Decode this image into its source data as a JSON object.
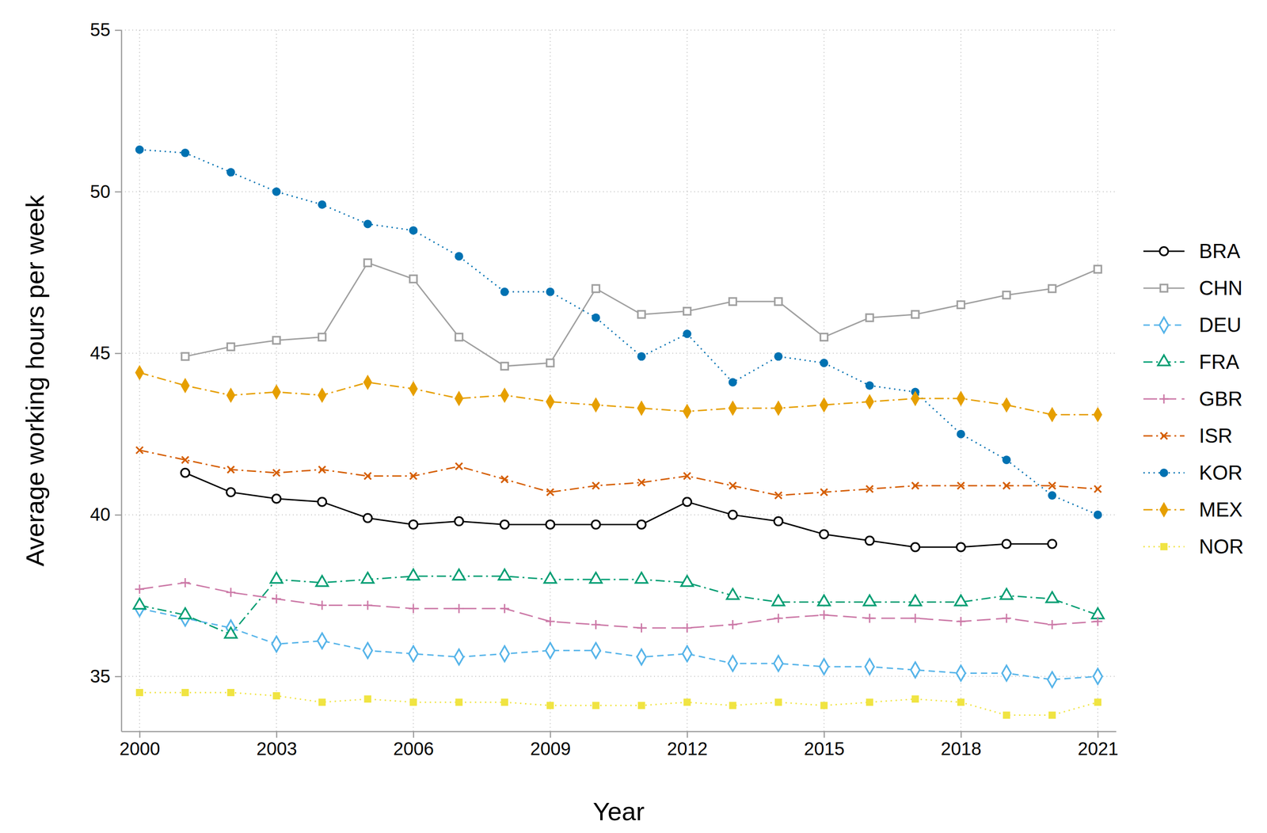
{
  "chart_data": {
    "type": "line",
    "x_label": "Year",
    "y_label": "Average working hours per week",
    "x": [
      2000,
      2001,
      2002,
      2003,
      2004,
      2005,
      2006,
      2007,
      2008,
      2009,
      2010,
      2011,
      2012,
      2013,
      2014,
      2015,
      2016,
      2017,
      2018,
      2019,
      2020,
      2021
    ],
    "xlim": [
      1999.6,
      2021.4
    ],
    "xticks": [
      2000,
      2003,
      2006,
      2009,
      2012,
      2015,
      2018,
      2021
    ],
    "ylim": [
      33.3,
      55
    ],
    "yticks": [
      35,
      40,
      45,
      50,
      55
    ],
    "grid": true,
    "legend": "right",
    "series": [
      {
        "name": "BRA",
        "color": "#000000",
        "marker": "circle-open",
        "line_style": "solid",
        "values": [
          null,
          41.3,
          40.7,
          40.5,
          40.4,
          39.9,
          39.7,
          39.8,
          39.7,
          39.7,
          39.7,
          39.7,
          40.4,
          40.0,
          39.8,
          39.4,
          39.2,
          39.0,
          39.0,
          39.1,
          39.1,
          null
        ]
      },
      {
        "name": "CHN",
        "color": "#a0a0a0",
        "marker": "square-open",
        "line_style": "solid",
        "values": [
          null,
          44.9,
          45.2,
          45.4,
          45.5,
          47.8,
          47.3,
          45.5,
          44.6,
          44.7,
          47.0,
          46.2,
          46.3,
          46.6,
          46.6,
          45.5,
          46.1,
          46.2,
          46.5,
          46.8,
          47.0,
          47.6
        ]
      },
      {
        "name": "DEU",
        "color": "#56b4e9",
        "marker": "diamond-open",
        "line_style": "dash",
        "values": [
          37.1,
          36.8,
          36.5,
          36.0,
          36.1,
          35.8,
          35.7,
          35.6,
          35.7,
          35.8,
          35.8,
          35.6,
          35.7,
          35.4,
          35.4,
          35.3,
          35.3,
          35.2,
          35.1,
          35.1,
          34.9,
          35.0
        ]
      },
      {
        "name": "FRA",
        "color": "#009e73",
        "marker": "triangle-open",
        "line_style": "dashdot",
        "values": [
          37.2,
          36.9,
          36.3,
          38.0,
          37.9,
          38.0,
          38.1,
          38.1,
          38.1,
          38.0,
          38.0,
          38.0,
          37.9,
          37.5,
          37.3,
          37.3,
          37.3,
          37.3,
          37.3,
          37.5,
          37.4,
          36.9
        ]
      },
      {
        "name": "GBR",
        "color": "#cc79a7",
        "marker": "plus",
        "line_style": "longdash",
        "values": [
          37.7,
          37.9,
          37.6,
          37.4,
          37.2,
          37.2,
          37.1,
          37.1,
          37.1,
          36.7,
          36.6,
          36.5,
          36.5,
          36.6,
          36.8,
          36.9,
          36.8,
          36.8,
          36.7,
          36.8,
          36.6,
          36.7
        ]
      },
      {
        "name": "ISR",
        "color": "#d55e00",
        "marker": "x",
        "line_style": "dashdot",
        "values": [
          42.0,
          41.7,
          41.4,
          41.3,
          41.4,
          41.2,
          41.2,
          41.5,
          41.1,
          40.7,
          40.9,
          41.0,
          41.2,
          40.9,
          40.6,
          40.7,
          40.8,
          40.9,
          40.9,
          40.9,
          40.9,
          40.8
        ]
      },
      {
        "name": "KOR",
        "color": "#0072b2",
        "marker": "circle",
        "line_style": "dot",
        "values": [
          51.3,
          51.2,
          50.6,
          50.0,
          49.6,
          49.0,
          48.8,
          48.0,
          46.9,
          46.9,
          46.1,
          44.9,
          45.6,
          44.1,
          44.9,
          44.7,
          44.0,
          43.8,
          42.5,
          41.7,
          40.6,
          40.0
        ]
      },
      {
        "name": "MEX",
        "color": "#e69f00",
        "marker": "diamond",
        "line_style": "dashdot",
        "values": [
          44.4,
          44.0,
          43.7,
          43.8,
          43.7,
          44.1,
          43.9,
          43.6,
          43.7,
          43.5,
          43.4,
          43.3,
          43.2,
          43.3,
          43.3,
          43.4,
          43.5,
          43.6,
          43.6,
          43.4,
          43.1,
          43.1
        ]
      },
      {
        "name": "NOR",
        "color": "#f0e442",
        "marker": "square",
        "line_style": "dot",
        "values": [
          34.5,
          34.5,
          34.5,
          34.4,
          34.2,
          34.3,
          34.2,
          34.2,
          34.2,
          34.1,
          34.1,
          34.1,
          34.2,
          34.1,
          34.2,
          34.1,
          34.2,
          34.3,
          34.2,
          33.8,
          33.8,
          34.2
        ]
      }
    ]
  }
}
